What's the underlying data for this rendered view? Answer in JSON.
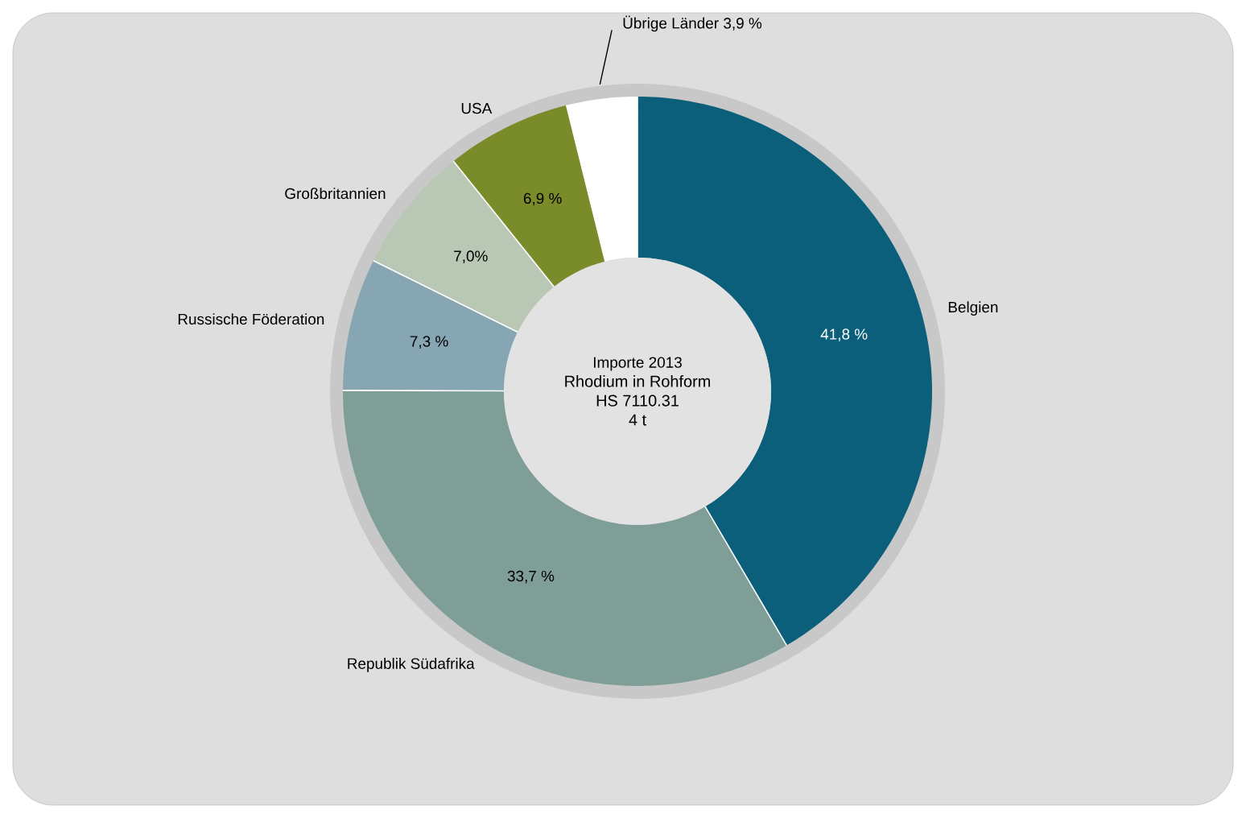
{
  "chart_data": {
    "type": "donut",
    "title": "Importe 2013",
    "subtitle": "Rhodium in Rohform",
    "annotations": [
      "HS 7110.31",
      "4 t"
    ],
    "categories": [
      "Belgien",
      "Republik Südafrika",
      "Russische Föderation",
      "Großbritannien",
      "USA",
      "Übrige Länder"
    ],
    "values": [
      41.8,
      33.7,
      7.3,
      7.0,
      6.9,
      3.9
    ],
    "colors": [
      "#0b5f7a",
      "#7f9e98",
      "#87a6b4",
      "#b9c8b4",
      "#7a8c2a",
      "#ffffff"
    ],
    "value_labels": [
      "41,8 %",
      "33,7 %",
      "7,3 %",
      "7,0%",
      "6,9 %",
      "3,9 %"
    ]
  }
}
